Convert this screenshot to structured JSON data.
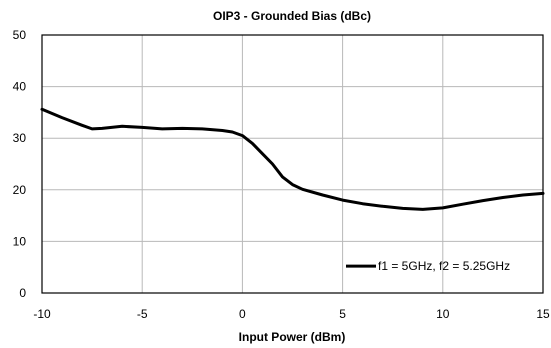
{
  "chart_data": {
    "type": "line",
    "title": "OIP3 - Grounded Bias (dBc)",
    "xlabel": "Input Power (dBm)",
    "ylabel": "",
    "xlim": [
      -10,
      15
    ],
    "ylim": [
      0,
      50
    ],
    "x_ticks": [
      -10,
      -5,
      0,
      5,
      10,
      15
    ],
    "y_ticks": [
      0,
      10,
      20,
      30,
      40,
      50
    ],
    "x_tick_labels": [
      "-10",
      "-5",
      "0",
      "5",
      "10",
      "15"
    ],
    "y_tick_labels": [
      "0",
      "10",
      "20",
      "30",
      "40",
      "50"
    ],
    "grid": true,
    "legend_position": "bottom-right",
    "series": [
      {
        "name": "f1 = 5GHz, f2 = 5.25GHz",
        "color": "#000000",
        "x": [
          -10,
          -9,
          -8,
          -7.5,
          -7,
          -6,
          -5,
          -4,
          -3,
          -2,
          -1,
          -0.5,
          0,
          0.5,
          1,
          1.5,
          2,
          2.5,
          3,
          4,
          5,
          6,
          7,
          8,
          9,
          10,
          11,
          12,
          13,
          14,
          15
        ],
        "y": [
          35.6,
          34.0,
          32.5,
          31.8,
          31.9,
          32.3,
          32.1,
          31.8,
          31.9,
          31.8,
          31.5,
          31.2,
          30.5,
          29.0,
          27.0,
          25.0,
          22.5,
          21.0,
          20.1,
          19.0,
          18.0,
          17.3,
          16.8,
          16.4,
          16.2,
          16.5,
          17.2,
          17.9,
          18.5,
          19.0,
          19.3
        ]
      }
    ]
  }
}
